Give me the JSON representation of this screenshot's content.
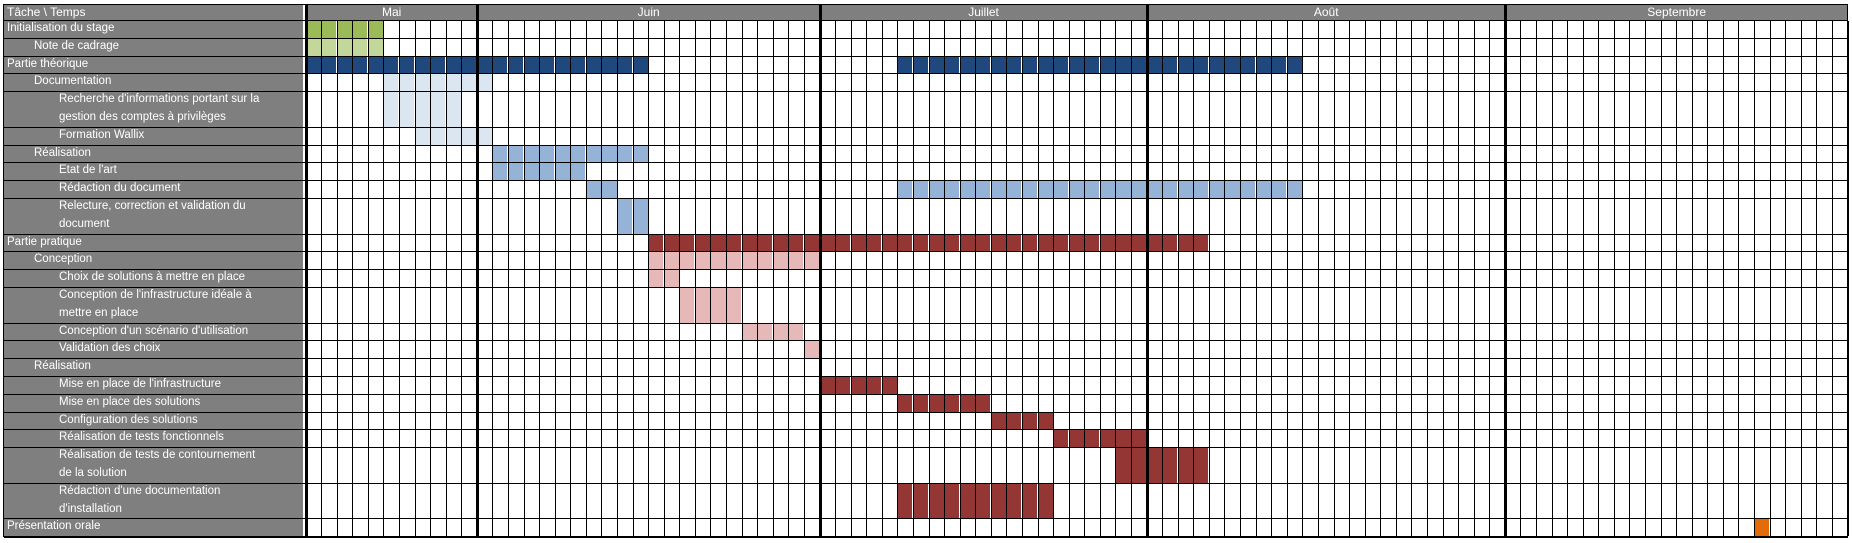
{
  "header_label": "Tâche \\ Temps",
  "months": [
    {
      "name": "Mai",
      "start": 0,
      "end": 11
    },
    {
      "name": "Juin",
      "start": 11,
      "end": 33
    },
    {
      "name": "Juillet",
      "start": 33,
      "end": 54
    },
    {
      "name": "Août",
      "start": 54,
      "end": 77
    },
    {
      "name": "Septembre",
      "start": 77,
      "end": 99
    }
  ],
  "colors": {
    "green": "#9bbb59",
    "light_green": "#c4d79b",
    "dark_blue": "#1f497d",
    "light_blue": "#dce6f1",
    "blue": "#95b3d7",
    "dark_red": "#943634",
    "light_red": "#e6b8b7",
    "orange": "#e26b0a",
    "label_bg": "#7f7f7f",
    "grid": "#000000"
  },
  "chart_data": {
    "type": "table",
    "title": "",
    "columns_count": 99,
    "rows": [
      {
        "label": "Initialisation du stage",
        "indent": 0,
        "span": 1,
        "bars": [
          {
            "start": 0,
            "end": 5,
            "color": "green"
          }
        ]
      },
      {
        "label": "Note de cadrage",
        "indent": 1,
        "span": 1,
        "bars": [
          {
            "start": 0,
            "end": 5,
            "color": "light_green"
          }
        ]
      },
      {
        "label": "Partie théorique",
        "indent": 0,
        "span": 1,
        "bars": [
          {
            "start": 0,
            "end": 22,
            "color": "dark_blue"
          },
          {
            "start": 38,
            "end": 64,
            "color": "dark_blue"
          }
        ]
      },
      {
        "label": "Documentation",
        "indent": 1,
        "span": 1,
        "bars": [
          {
            "start": 5,
            "end": 12,
            "color": "light_blue"
          }
        ]
      },
      {
        "label": "Recherche d'informations portant sur la gestion des comptes à privilèges",
        "indent": 2,
        "span": 2,
        "bars": [
          {
            "start": 5,
            "end": 10,
            "color": "light_blue"
          }
        ]
      },
      {
        "label": "Formation Wallix",
        "indent": 2,
        "span": 1,
        "bars": [
          {
            "start": 7,
            "end": 12,
            "color": "light_blue"
          }
        ]
      },
      {
        "label": "Réalisation",
        "indent": 1,
        "span": 1,
        "bars": [
          {
            "start": 12,
            "end": 22,
            "color": "blue"
          }
        ]
      },
      {
        "label": "Etat de l'art",
        "indent": 2,
        "span": 1,
        "bars": [
          {
            "start": 12,
            "end": 18,
            "color": "blue"
          }
        ]
      },
      {
        "label": "Rédaction du document",
        "indent": 2,
        "span": 1,
        "bars": [
          {
            "start": 18,
            "end": 20,
            "color": "blue"
          },
          {
            "start": 38,
            "end": 64,
            "color": "blue"
          }
        ]
      },
      {
        "label": "Relecture, correction et validation du document",
        "indent": 2,
        "span": 2,
        "bars": [
          {
            "start": 20,
            "end": 22,
            "color": "blue"
          }
        ]
      },
      {
        "label": "Partie pratique",
        "indent": 0,
        "span": 1,
        "bars": [
          {
            "start": 22,
            "end": 58,
            "color": "dark_red"
          }
        ]
      },
      {
        "label": "Conception",
        "indent": 1,
        "span": 1,
        "bars": [
          {
            "start": 22,
            "end": 33,
            "color": "light_red"
          }
        ]
      },
      {
        "label": "Choix de solutions à mettre en place",
        "indent": 2,
        "span": 1,
        "bars": [
          {
            "start": 22,
            "end": 24,
            "color": "light_red"
          }
        ]
      },
      {
        "label": "Conception de l'infrastructure idéale à mettre en place",
        "indent": 2,
        "span": 2,
        "bars": [
          {
            "start": 24,
            "end": 28,
            "color": "light_red"
          }
        ]
      },
      {
        "label": "Conception d'un scénario d'utilisation",
        "indent": 2,
        "span": 1,
        "bars": [
          {
            "start": 28,
            "end": 32,
            "color": "light_red"
          }
        ]
      },
      {
        "label": "Validation des choix",
        "indent": 2,
        "span": 1,
        "bars": [
          {
            "start": 32,
            "end": 33,
            "color": "light_red"
          }
        ]
      },
      {
        "label": "Réalisation",
        "indent": 1,
        "span": 1,
        "bars": []
      },
      {
        "label": "Mise en place de l'infrastructure",
        "indent": 2,
        "span": 1,
        "bars": [
          {
            "start": 33,
            "end": 38,
            "color": "dark_red"
          }
        ]
      },
      {
        "label": "Mise en place des solutions",
        "indent": 2,
        "span": 1,
        "bars": [
          {
            "start": 38,
            "end": 44,
            "color": "dark_red"
          }
        ]
      },
      {
        "label": "Configuration des solutions",
        "indent": 2,
        "span": 1,
        "bars": [
          {
            "start": 44,
            "end": 48,
            "color": "dark_red"
          }
        ]
      },
      {
        "label": "Réalisation de tests fonctionnels",
        "indent": 2,
        "span": 1,
        "bars": [
          {
            "start": 48,
            "end": 54,
            "color": "dark_red"
          }
        ]
      },
      {
        "label": "Réalisation de tests de contournement de la solution",
        "indent": 2,
        "span": 2,
        "bars": [
          {
            "start": 52,
            "end": 58,
            "color": "dark_red"
          }
        ]
      },
      {
        "label": "Rédaction d'une documentation d'installation",
        "indent": 2,
        "span": 2,
        "bars": [
          {
            "start": 38,
            "end": 48,
            "color": "dark_red"
          }
        ]
      },
      {
        "label": "Présentation orale",
        "indent": 0,
        "span": 1,
        "bars": [
          {
            "start": 93,
            "end": 94,
            "color": "orange"
          }
        ]
      }
    ]
  }
}
